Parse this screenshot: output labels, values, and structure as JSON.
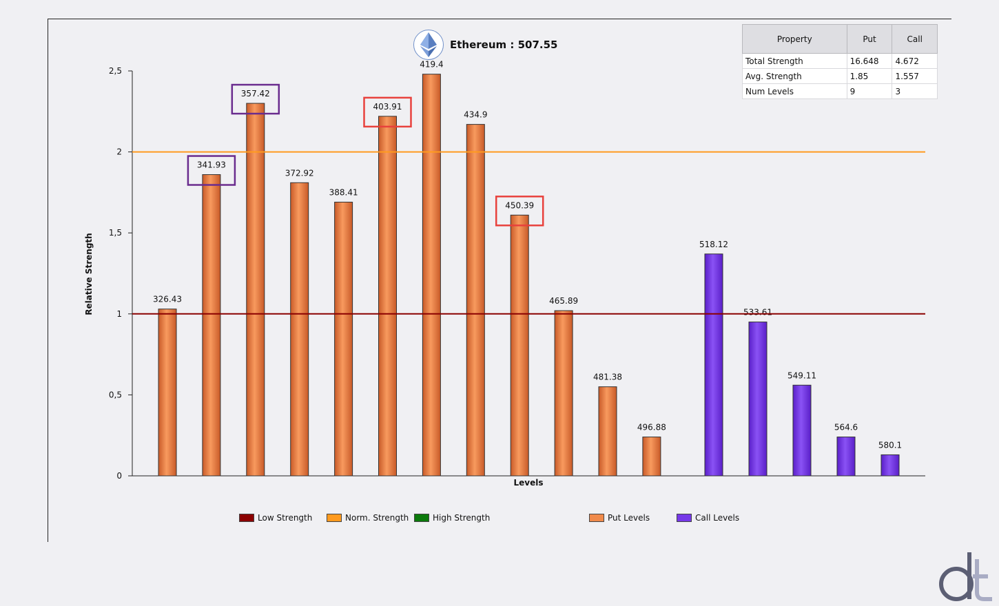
{
  "header": {
    "title": "Ethereum : 507.55",
    "logo_icon": "ethereum-icon"
  },
  "table": {
    "headers": [
      "Property",
      "Put",
      "Call"
    ],
    "rows": [
      [
        "Total Strength",
        "16.648",
        "4.672"
      ],
      [
        "Avg. Strength",
        "1.85",
        "1.557"
      ],
      [
        "Num Levels",
        "9",
        "3"
      ]
    ]
  },
  "legend": {
    "low": "Low Strength",
    "norm": "Norm. Strength",
    "high": "High Strength",
    "put": "Put Levels",
    "call": "Call Levels"
  },
  "colors": {
    "low": "#8b0000",
    "norm": "#ff9a1e",
    "high": "#0c7a0c",
    "put": "#f08a4b",
    "call": "#7638e8",
    "box_purple": "#6a2c8e",
    "box_red": "#e8413c"
  },
  "chart_data": {
    "type": "bar",
    "title": "Ethereum : 507.55",
    "xlabel": "Levels",
    "ylabel": "Relative Strength",
    "ylim": [
      0,
      2.5
    ],
    "yticks": [
      "0",
      "0,5",
      "1",
      "1,5",
      "2",
      "2,5"
    ],
    "reference_lines": [
      {
        "name": "Low Strength",
        "value": 1
      },
      {
        "name": "Norm. Strength",
        "value": 2
      }
    ],
    "series": [
      {
        "name": "Put Levels",
        "labels": [
          "326.43",
          "341.93",
          "357.42",
          "372.92",
          "388.41",
          "403.91",
          "419.4",
          "434.9",
          "450.39",
          "465.89",
          "481.38",
          "496.88"
        ],
        "values": [
          1.03,
          1.86,
          2.3,
          1.81,
          1.69,
          2.22,
          2.48,
          2.17,
          1.61,
          1.02,
          0.55,
          0.24
        ]
      },
      {
        "name": "Call Levels",
        "labels": [
          "518.12",
          "533.61",
          "549.11",
          "564.6",
          "580.1"
        ],
        "values": [
          1.37,
          0.95,
          0.56,
          0.24,
          0.13
        ]
      }
    ],
    "highlighted_levels": [
      {
        "label": "341.93",
        "color": "purple"
      },
      {
        "label": "357.42",
        "color": "purple"
      },
      {
        "label": "403.91",
        "color": "red"
      },
      {
        "label": "450.39",
        "color": "red"
      }
    ],
    "legend_position": "bottom"
  }
}
